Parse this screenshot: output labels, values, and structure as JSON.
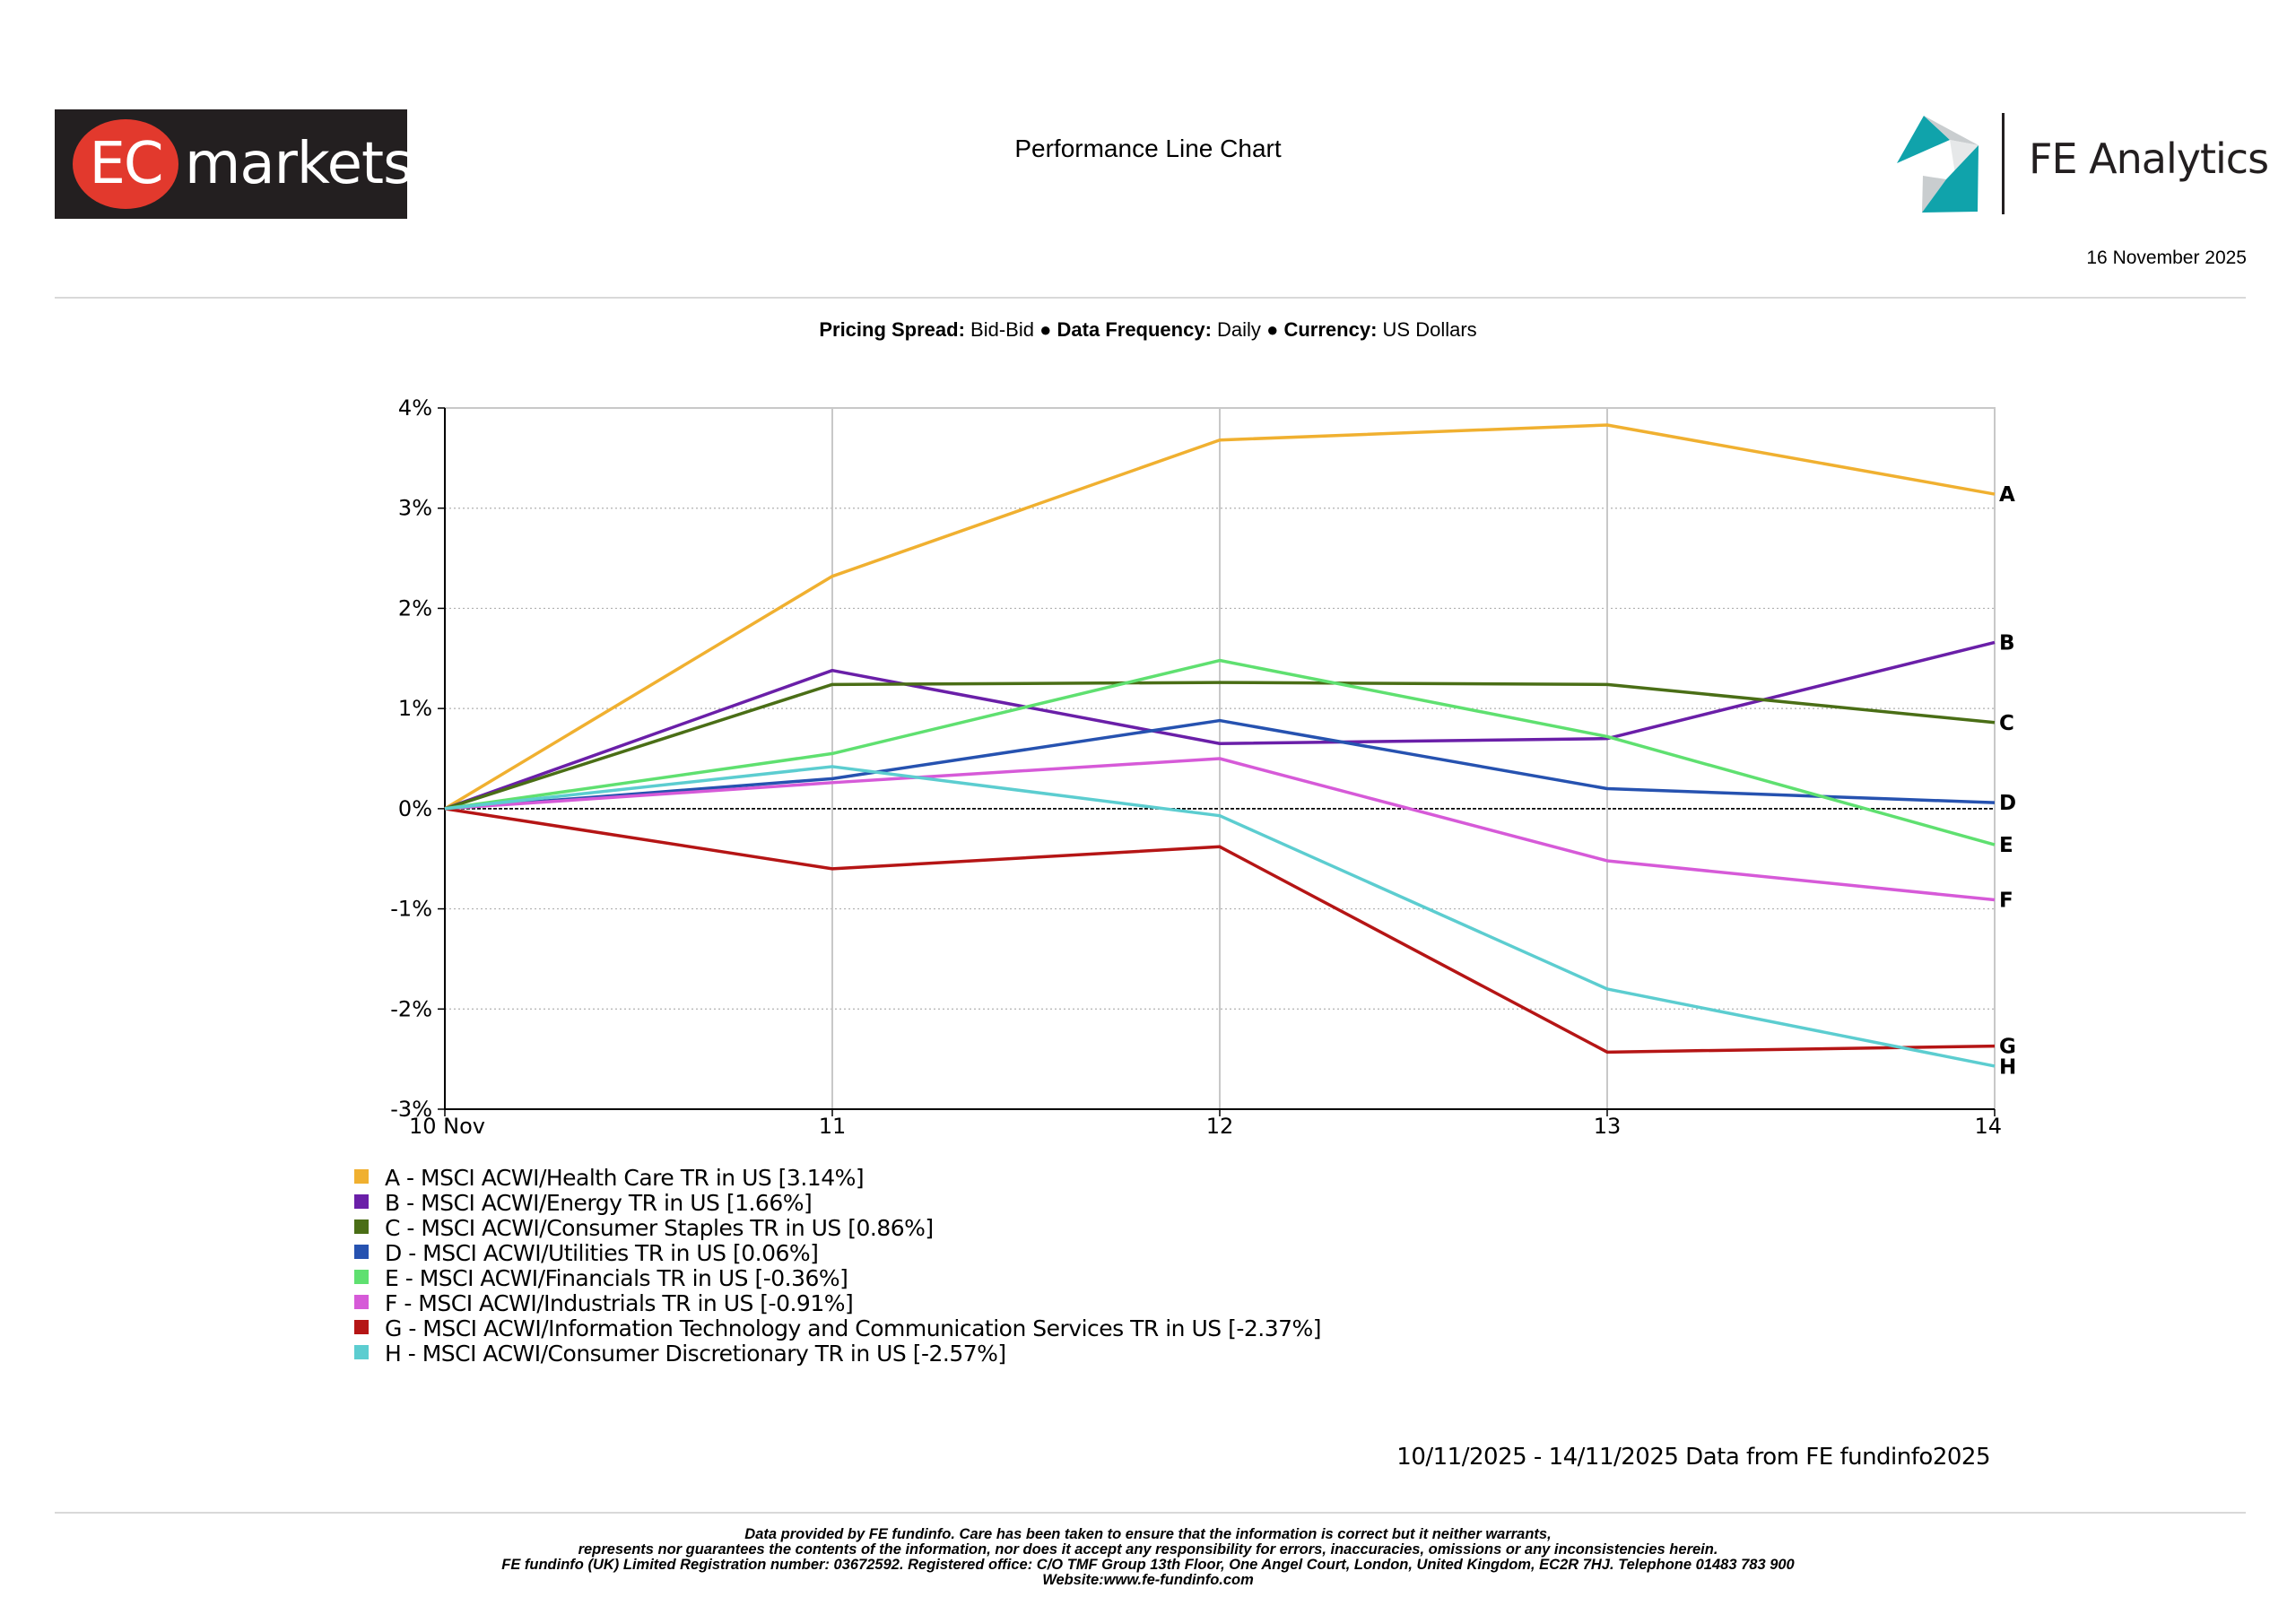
{
  "header": {
    "brand_badge": "EC",
    "brand_word": "markets",
    "title": "Performance Line Chart",
    "analytics_brand": "FE Analytics",
    "date": "16 November 2025"
  },
  "settings": {
    "pricing_label": "Pricing Spread:",
    "pricing_value": "Bid-Bid",
    "frequency_label": "Data Frequency:",
    "frequency_value": "Daily",
    "currency_label": "Currency:",
    "currency_value": "US Dollars",
    "separator": "●"
  },
  "chart_data": {
    "type": "line",
    "title": "Performance Line Chart",
    "x": [
      "10 Nov",
      "11",
      "12",
      "13",
      "14"
    ],
    "ylim": [
      -3,
      4
    ],
    "yticks": [
      4,
      3,
      2,
      1,
      0,
      -1,
      -2,
      -3
    ],
    "ytick_suffix": "%",
    "grid": true,
    "series": [
      {
        "key": "A",
        "name": "MSCI ACWI/Health Care TR in US",
        "final": "3.14%",
        "color": "#f0b030",
        "values": [
          0,
          2.32,
          3.68,
          3.83,
          3.14
        ]
      },
      {
        "key": "B",
        "name": "MSCI ACWI/Energy TR in US",
        "final": "1.66%",
        "color": "#6a1fa8",
        "values": [
          0,
          1.38,
          0.65,
          0.7,
          1.66
        ]
      },
      {
        "key": "C",
        "name": "MSCI ACWI/Consumer Staples TR in US",
        "final": "0.86%",
        "color": "#4a6e16",
        "values": [
          0,
          1.24,
          1.26,
          1.24,
          0.86
        ]
      },
      {
        "key": "D",
        "name": "MSCI ACWI/Utilities TR in US",
        "final": "0.06%",
        "color": "#2652b0",
        "values": [
          0,
          0.3,
          0.88,
          0.2,
          0.06
        ]
      },
      {
        "key": "E",
        "name": "MSCI ACWI/Financials TR in US",
        "final": "-0.36%",
        "color": "#5fe070",
        "values": [
          0,
          0.55,
          1.48,
          0.72,
          -0.36
        ]
      },
      {
        "key": "F",
        "name": "MSCI ACWI/Industrials TR in US",
        "final": "-0.91%",
        "color": "#d65ad8",
        "values": [
          0,
          0.26,
          0.5,
          -0.52,
          -0.91
        ]
      },
      {
        "key": "G",
        "name": "MSCI ACWI/Information Technology and Communication Services TR in US",
        "final": "-2.37%",
        "color": "#b51515",
        "values": [
          0,
          -0.6,
          -0.38,
          -2.43,
          -2.37
        ]
      },
      {
        "key": "H",
        "name": "MSCI ACWI/Consumer Discretionary TR in US",
        "final": "-2.57%",
        "color": "#5ccdd0",
        "values": [
          0,
          0.42,
          -0.07,
          -1.8,
          -2.57
        ]
      }
    ]
  },
  "range_note": "10/11/2025 - 14/11/2025 Data from FE fundinfo2025",
  "disclaimer": [
    "Data provided by FE fundinfo. Care has been taken to ensure that the information is correct but it neither warrants,",
    "represents nor guarantees the contents of the information, nor does it accept any responsibility for errors, inaccuracies, omissions or any inconsistencies herein.",
    "FE fundinfo (UK) Limited Registration number: 03672592. Registered office: C/O TMF Group 13th Floor, One Angel Court, London, United Kingdom, EC2R 7HJ. Telephone 01483 783 900",
    "Website:www.fe-fundinfo.com"
  ]
}
